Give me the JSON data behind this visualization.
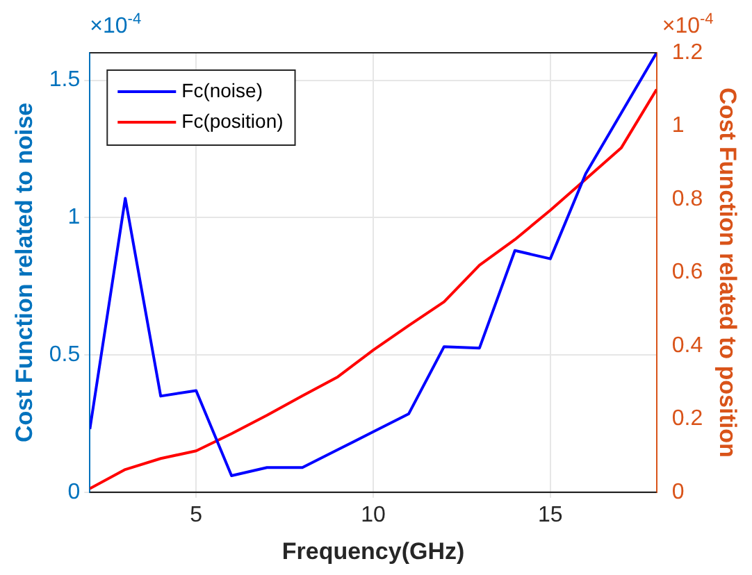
{
  "chart_data": {
    "type": "line",
    "xlabel": "Frequency(GHz)",
    "ylabel": "Cost Function related to noise",
    "y2label": "Cost Function related to position",
    "x": [
      2,
      3,
      4,
      5,
      6,
      7,
      8,
      9,
      10,
      11,
      12,
      13,
      14,
      15,
      16,
      17,
      18
    ],
    "series": [
      {
        "name": "Fc(noise)",
        "color": "#0000ff",
        "values": [
          0.23,
          1.07,
          0.35,
          0.37,
          0.06,
          0.09,
          0.09,
          0.155,
          0.22,
          0.285,
          0.53,
          0.525,
          0.88,
          0.85,
          1.16,
          1.38,
          1.6
        ]
      },
      {
        "name": "Fc(position)",
        "color": "#ff0000",
        "axis": "y2",
        "values": [
          0.01,
          0.062,
          0.092,
          0.113,
          0.16,
          0.21,
          0.263,
          0.315,
          0.388,
          0.455,
          0.52,
          0.62,
          0.69,
          0.77,
          0.855,
          0.94,
          1.1
        ]
      }
    ],
    "xlim": [
      2,
      18
    ],
    "xticks": [
      5,
      10,
      15
    ],
    "ylim": [
      0,
      1.6
    ],
    "yticks": [
      0,
      0.5,
      1,
      1.5
    ],
    "y2lim": [
      0,
      1.2
    ],
    "y2ticks": [
      0,
      0.2,
      0.4,
      0.6,
      0.8,
      1,
      1.2
    ],
    "annotations": [
      "×10$^{-4}$",
      "×10$^{-4}$"
    ],
    "grid": true,
    "legend": "top left",
    "line_style": "solid",
    "marker": "none"
  }
}
